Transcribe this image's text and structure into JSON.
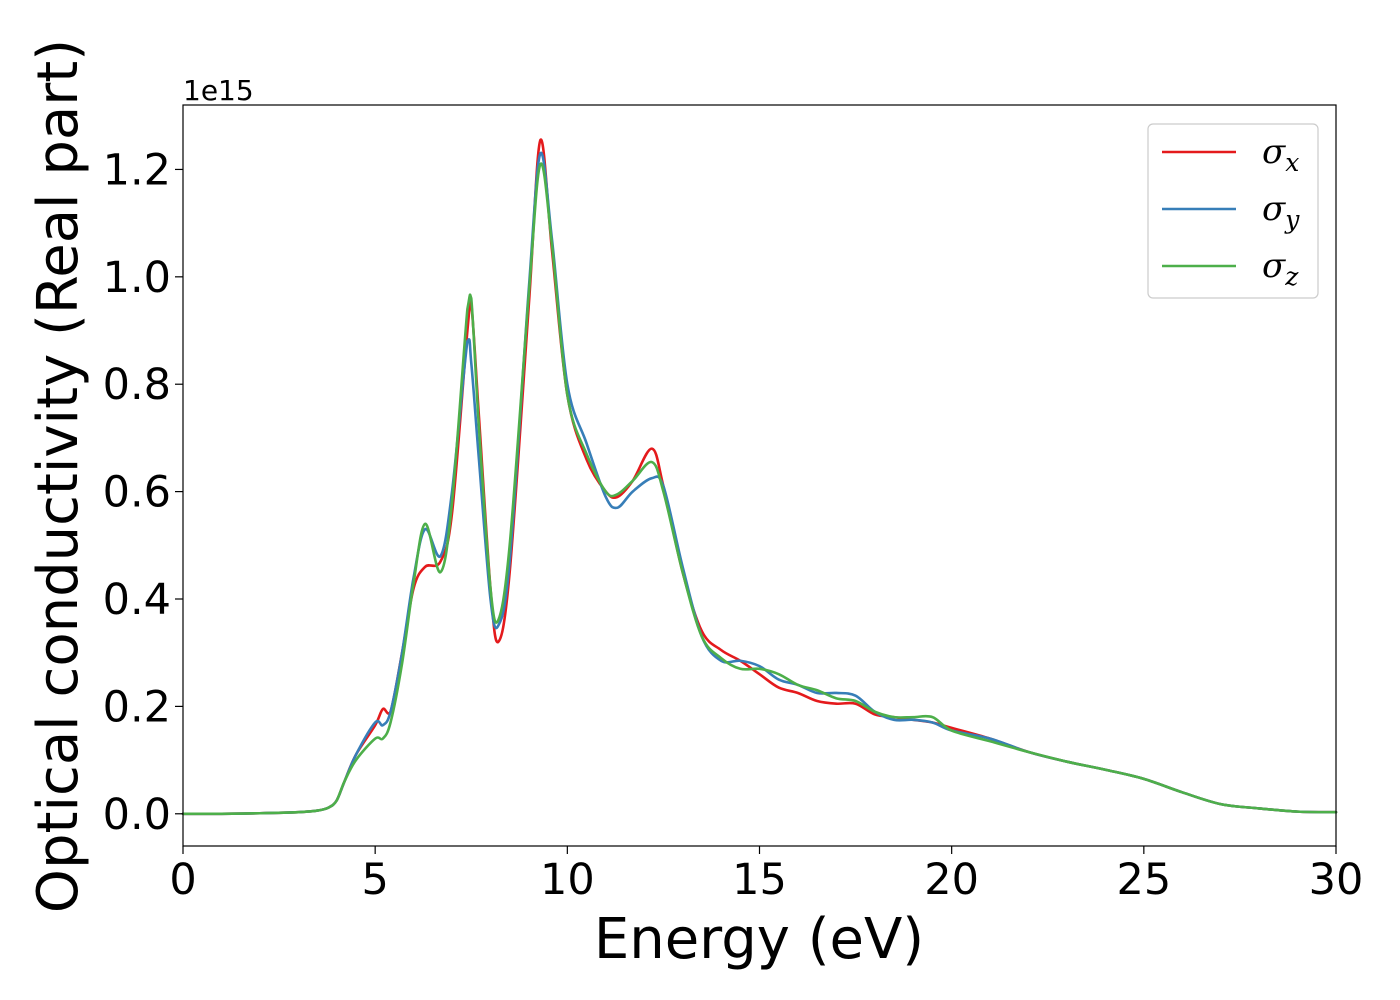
{
  "chart_data": {
    "type": "line",
    "xlabel": "Energy (eV)",
    "ylabel": "Optical conductivity (Real part)",
    "y_offset_text": "1e15",
    "y_multiplier": 1000000000000000.0,
    "xlim": [
      0,
      30
    ],
    "ylim": [
      -0.06,
      1.32
    ],
    "xticks": [
      0,
      5,
      10,
      15,
      20,
      25,
      30
    ],
    "xtick_labels": [
      "0",
      "5",
      "10",
      "15",
      "20",
      "25",
      "30"
    ],
    "yticks": [
      0.0,
      0.2,
      0.4,
      0.6,
      0.8,
      1.0,
      1.2
    ],
    "ytick_labels": [
      "0.0",
      "0.2",
      "0.4",
      "0.6",
      "0.8",
      "1.0",
      "1.2"
    ],
    "grid": false,
    "legend_position": "top-right",
    "x": [
      0,
      1,
      2,
      3,
      3.5,
      3.8,
      4.0,
      4.2,
      4.5,
      5.0,
      5.2,
      5.4,
      5.7,
      6.0,
      6.3,
      6.7,
      7.0,
      7.4,
      7.5,
      7.7,
      8.0,
      8.2,
      8.5,
      9.0,
      9.3,
      9.6,
      10.0,
      10.5,
      11.0,
      11.3,
      11.7,
      12.2,
      12.5,
      13.0,
      13.5,
      14.0,
      14.5,
      15.0,
      15.5,
      16.0,
      16.5,
      17.0,
      17.5,
      18.0,
      18.5,
      19.0,
      19.5,
      20.0,
      21.0,
      22.0,
      23.0,
      24.0,
      25.0,
      26.0,
      27.0,
      28.0,
      29.0,
      30.0
    ],
    "series": [
      {
        "name": "σx",
        "label_base": "σ",
        "label_sub": "x",
        "color": "#e41a1c",
        "values": [
          0.0,
          0.0,
          0.001,
          0.003,
          0.006,
          0.012,
          0.025,
          0.06,
          0.11,
          0.165,
          0.195,
          0.19,
          0.3,
          0.42,
          0.46,
          0.47,
          0.56,
          0.9,
          0.95,
          0.74,
          0.42,
          0.32,
          0.45,
          0.95,
          1.255,
          1.05,
          0.78,
          0.66,
          0.6,
          0.59,
          0.62,
          0.68,
          0.61,
          0.45,
          0.34,
          0.305,
          0.285,
          0.26,
          0.235,
          0.225,
          0.21,
          0.205,
          0.205,
          0.185,
          0.18,
          0.175,
          0.17,
          0.16,
          0.14,
          0.115,
          0.097,
          0.082,
          0.065,
          0.04,
          0.018,
          0.01,
          0.004,
          0.003
        ]
      },
      {
        "name": "σy",
        "label_base": "σ",
        "label_sub": "y",
        "color": "#377eb8",
        "values": [
          0.0,
          0.0,
          0.001,
          0.003,
          0.006,
          0.012,
          0.025,
          0.06,
          0.11,
          0.17,
          0.165,
          0.19,
          0.3,
          0.44,
          0.53,
          0.48,
          0.6,
          0.88,
          0.84,
          0.66,
          0.4,
          0.35,
          0.47,
          0.98,
          1.23,
          1.07,
          0.8,
          0.69,
          0.59,
          0.57,
          0.6,
          0.625,
          0.61,
          0.46,
          0.33,
          0.285,
          0.285,
          0.275,
          0.25,
          0.24,
          0.225,
          0.225,
          0.22,
          0.19,
          0.175,
          0.175,
          0.17,
          0.155,
          0.14,
          0.115,
          0.097,
          0.082,
          0.065,
          0.04,
          0.018,
          0.01,
          0.004,
          0.003
        ]
      },
      {
        "name": "σz",
        "label_base": "σ",
        "label_sub": "z",
        "color": "#4daf4a",
        "values": [
          0.0,
          0.0,
          0.001,
          0.003,
          0.006,
          0.012,
          0.025,
          0.06,
          0.1,
          0.14,
          0.14,
          0.17,
          0.28,
          0.43,
          0.54,
          0.45,
          0.58,
          0.94,
          0.96,
          0.72,
          0.42,
          0.36,
          0.5,
          0.97,
          1.21,
          1.06,
          0.78,
          0.67,
          0.6,
          0.595,
          0.62,
          0.655,
          0.6,
          0.45,
          0.33,
          0.29,
          0.27,
          0.27,
          0.26,
          0.24,
          0.23,
          0.215,
          0.21,
          0.19,
          0.18,
          0.18,
          0.18,
          0.155,
          0.135,
          0.115,
          0.097,
          0.082,
          0.065,
          0.04,
          0.018,
          0.01,
          0.004,
          0.003
        ]
      }
    ]
  }
}
